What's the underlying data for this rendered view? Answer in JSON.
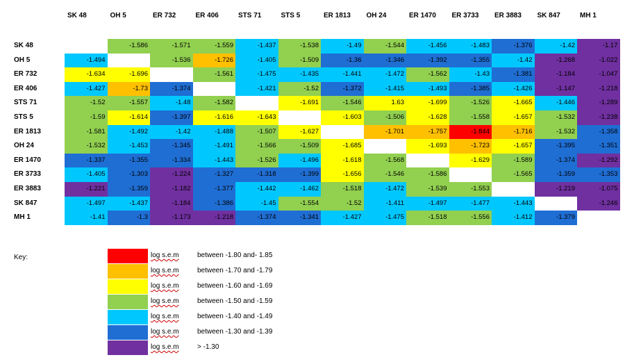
{
  "chart_data": {
    "type": "heatmap",
    "columns": [
      "SK 48",
      "OH 5",
      "ER 732",
      "ER 406",
      "STS 71",
      "STS 5",
      "ER 1813",
      "OH 24",
      "ER 1470",
      "ER 3733",
      "ER 3883",
      "SK 847",
      "MH 1"
    ],
    "rows": [
      "SK 48",
      "OH 5",
      "ER 732",
      "ER 406",
      "STS 71",
      "STS 5",
      "ER 1813",
      "OH 24",
      "ER 1470",
      "ER 3733",
      "ER 3883",
      "SK 847",
      "MH 1"
    ],
    "values": [
      [
        null,
        -1.586,
        -1.571,
        -1.559,
        -1.437,
        -1.538,
        -1.49,
        -1.544,
        -1.456,
        -1.483,
        -1.376,
        -1.42,
        -1.17
      ],
      [
        -1.494,
        null,
        -1.536,
        -1.726,
        -1.405,
        -1.509,
        -1.36,
        -1.346,
        -1.392,
        -1.355,
        -1.42,
        -1.268,
        -1.022
      ],
      [
        -1.634,
        -1.696,
        null,
        -1.561,
        -1.475,
        -1.435,
        -1.441,
        -1.472,
        -1.562,
        -1.43,
        -1.381,
        -1.184,
        -1.047
      ],
      [
        -1.427,
        -1.73,
        -1.374,
        null,
        -1.421,
        -1.52,
        -1.372,
        -1.415,
        -1.493,
        -1.385,
        -1.426,
        -1.147,
        -1.218
      ],
      [
        -1.52,
        -1.557,
        -1.48,
        -1.582,
        null,
        -1.691,
        -1.546,
        1.63,
        -1.699,
        -1.526,
        -1.665,
        -1.446,
        -1.289
      ],
      [
        -1.59,
        -1.614,
        -1.397,
        -1.616,
        -1.643,
        null,
        -1.603,
        -1.506,
        -1.628,
        -1.558,
        -1.657,
        -1.532,
        -1.238
      ],
      [
        -1.581,
        -1.492,
        -1.42,
        -1.488,
        -1.507,
        -1.627,
        null,
        -1.701,
        -1.757,
        -1.844,
        -1.716,
        -1.532,
        -1.358
      ],
      [
        -1.532,
        -1.453,
        -1.345,
        -1.491,
        -1.566,
        -1.509,
        -1.685,
        null,
        -1.693,
        -1.723,
        -1.657,
        -1.395,
        -1.351
      ],
      [
        -1.337,
        -1.355,
        -1.334,
        -1.443,
        -1.526,
        -1.496,
        -1.618,
        -1.568,
        null,
        -1.629,
        -1.589,
        -1.374,
        -1.292
      ],
      [
        -1.405,
        -1.303,
        -1.224,
        -1.327,
        -1.318,
        -1.399,
        -1.656,
        -1.546,
        -1.586,
        null,
        -1.565,
        -1.359,
        -1.353
      ],
      [
        -1.221,
        -1.359,
        -1.182,
        -1.377,
        -1.442,
        -1.462,
        -1.518,
        -1.472,
        -1.539,
        -1.553,
        null,
        -1.219,
        -1.075
      ],
      [
        -1.497,
        -1.437,
        -1.184,
        -1.386,
        -1.45,
        -1.554,
        -1.52,
        -1.411,
        -1.497,
        -1.477,
        -1.443,
        null,
        -1.246
      ],
      [
        -1.41,
        -1.3,
        -1.173,
        -1.218,
        -1.374,
        -1.341,
        -1.427,
        -1.475,
        -1.518,
        -1.556,
        -1.412,
        -1.379,
        null
      ]
    ],
    "palette": {
      "red": "#ff0000",
      "orange": "#ffc000",
      "yellow": "#ffff00",
      "green": "#92d050",
      "light_blue": "#00c8ff",
      "dark_blue": "#1f6ed4",
      "purple": "#7030a0"
    },
    "key": {
      "title": "Key:",
      "items": [
        {
          "color": "red",
          "label": "log s.e.m",
          "range": "between -1.80 and- 1.85"
        },
        {
          "color": "orange",
          "label": "log s.e.m",
          "range": "between -1.70 and -1.79"
        },
        {
          "color": "yellow",
          "label": "log s.e.m",
          "range": "between -1.60 and -1.69"
        },
        {
          "color": "green",
          "label": "log s.e.m",
          "range": "between -1.50 and -1.59"
        },
        {
          "color": "light_blue",
          "label": "log s.e.m",
          "range": "between -1.40 and -1.49"
        },
        {
          "color": "dark_blue",
          "label": "log s.e.m",
          "range": "between -1.30 and -1.39"
        },
        {
          "color": "purple",
          "label": "log s.e.m",
          "range": "> -1.30"
        }
      ]
    }
  }
}
